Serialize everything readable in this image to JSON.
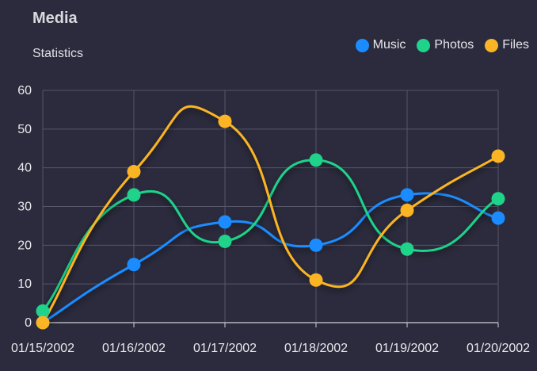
{
  "chart_data": {
    "type": "line",
    "title": "Media",
    "subtitle": "Statistics",
    "categories": [
      "01/15/2002",
      "01/16/2002",
      "01/17/2002",
      "01/18/2002",
      "01/19/2002",
      "01/20/2002"
    ],
    "ylim": [
      0,
      60
    ],
    "yticks": [
      0,
      10,
      20,
      30,
      40,
      50,
      60
    ],
    "grid": true,
    "legend_position": "top-right",
    "series": [
      {
        "name": "Music",
        "color": "#1a8cff",
        "values": [
          0,
          15,
          26,
          20,
          33,
          27
        ]
      },
      {
        "name": "Photos",
        "color": "#1fd38a",
        "values": [
          3,
          33,
          21,
          42,
          19,
          32
        ]
      },
      {
        "name": "Files",
        "color": "#fbb424",
        "values": [
          0,
          39,
          52,
          11,
          29,
          43
        ]
      }
    ]
  },
  "colors": {
    "background": "#2b2b3d",
    "grid": "#55566a",
    "axis": "#cfd0d8"
  }
}
